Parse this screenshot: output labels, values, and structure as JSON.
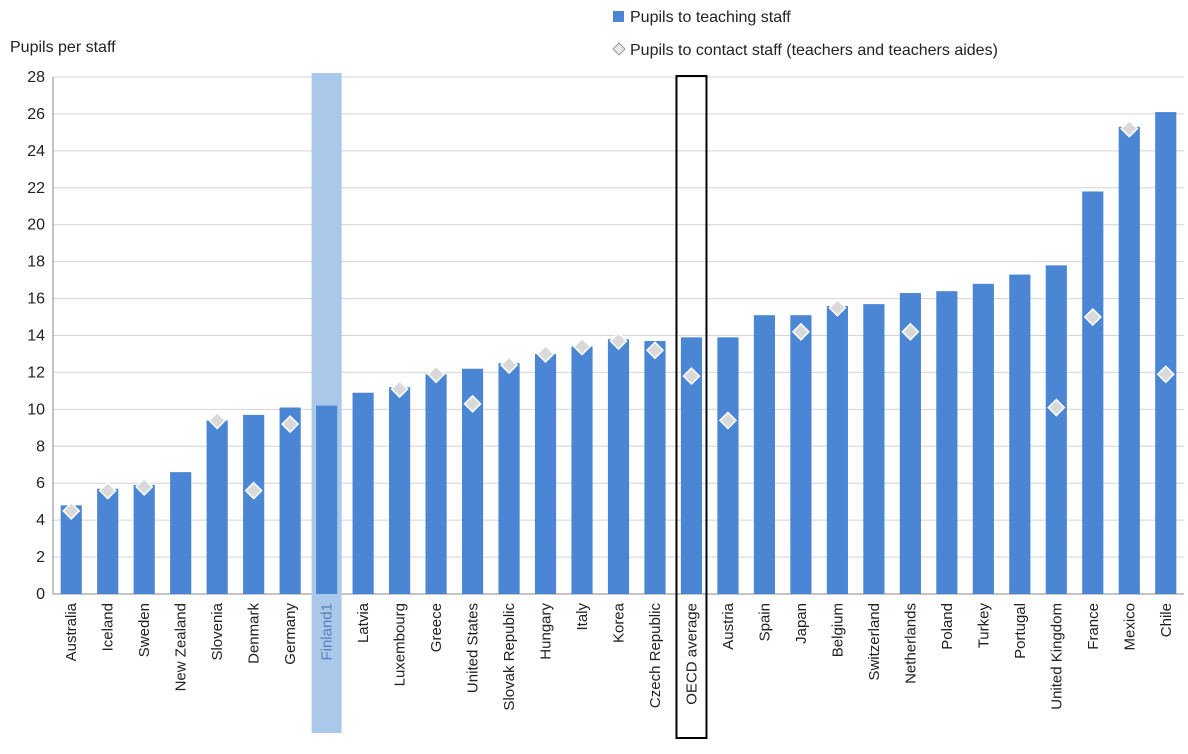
{
  "chart_data": {
    "type": "bar",
    "ylabel": "Pupils per staff",
    "ylim": [
      0,
      28
    ],
    "yticks": [
      0,
      2,
      4,
      6,
      8,
      10,
      12,
      14,
      16,
      18,
      20,
      22,
      24,
      26,
      28
    ],
    "grid": true,
    "legend_position": "top-right",
    "categories": [
      "Australia",
      "Iceland",
      "Sweden",
      "New Zealand",
      "Slovenia",
      "Denmark",
      "Germany",
      "Finland1",
      "Latvia",
      "Luxembourg",
      "Greece",
      "United States",
      "Slovak Republic",
      "Hungary",
      "Italy",
      "Korea",
      "Czech Republic",
      "OECD average",
      "Austria",
      "Spain",
      "Japan",
      "Belgium",
      "Switzerland",
      "Netherlands",
      "Poland",
      "Turkey",
      "Portugal",
      "United Kingdom",
      "France",
      "Mexico",
      "Chile"
    ],
    "highlighted_category": "Finland1",
    "boxed_category": "OECD average",
    "series": [
      {
        "name": "Pupils to teaching staff",
        "marker": "bar",
        "color": "#4a86d4",
        "values": [
          4.8,
          5.7,
          5.9,
          6.6,
          9.4,
          9.7,
          10.1,
          10.2,
          10.9,
          11.2,
          11.9,
          12.2,
          12.5,
          13.0,
          13.4,
          13.8,
          13.7,
          13.9,
          13.9,
          15.1,
          15.1,
          15.6,
          15.7,
          16.3,
          16.4,
          16.8,
          17.3,
          17.8,
          21.8,
          25.3,
          26.1
        ]
      },
      {
        "name": "Pupils to contact staff (teachers and teachers aides)",
        "marker": "diamond",
        "color": "#d9d9d9",
        "values": [
          4.5,
          5.6,
          5.8,
          null,
          9.4,
          5.6,
          9.2,
          null,
          null,
          11.1,
          11.9,
          10.3,
          12.4,
          13.0,
          13.4,
          13.7,
          13.2,
          11.8,
          9.4,
          null,
          14.2,
          15.5,
          null,
          14.2,
          null,
          null,
          null,
          10.1,
          15.0,
          25.2,
          11.9
        ]
      }
    ]
  }
}
